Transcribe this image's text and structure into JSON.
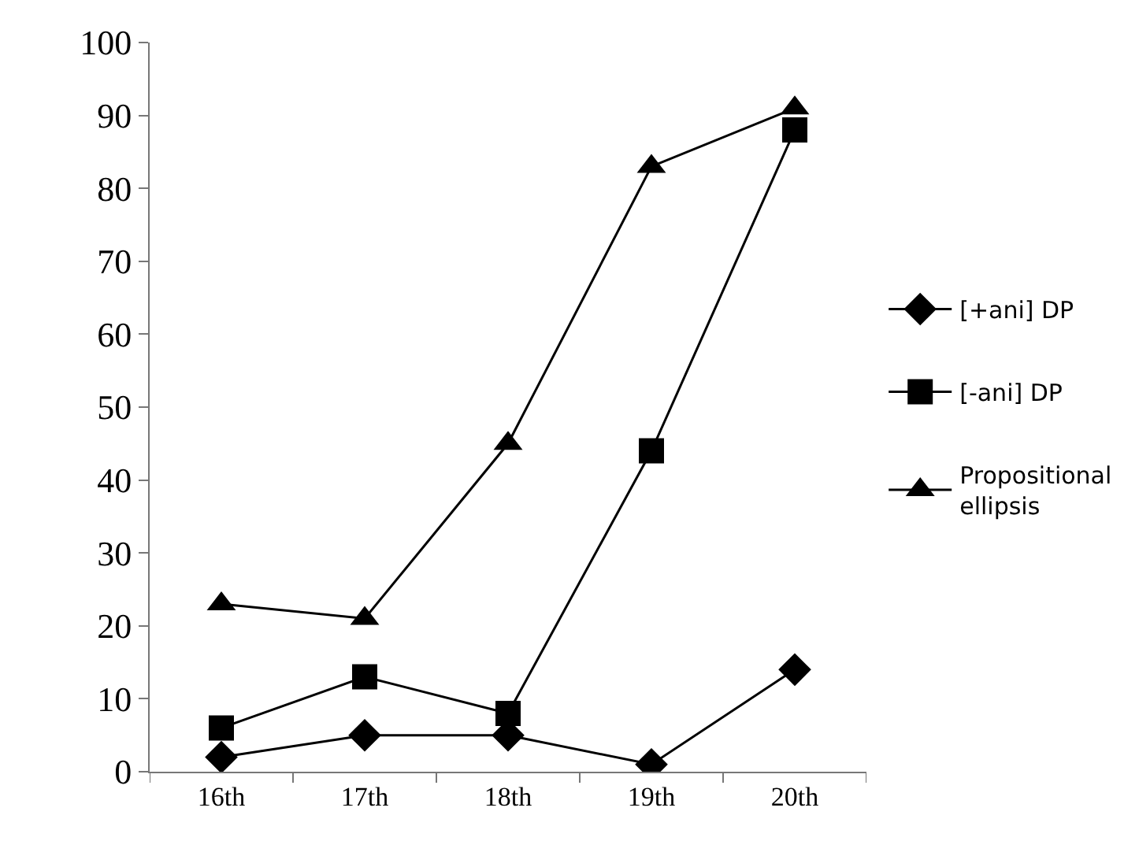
{
  "chart_data": {
    "type": "line",
    "categories": [
      "16th",
      "17th",
      "18th",
      "19th",
      "20th"
    ],
    "series": [
      {
        "name": "[+ani] DP",
        "color": "#000000",
        "marker": "diamond",
        "values": [
          2,
          5,
          5,
          1,
          14
        ]
      },
      {
        "name": "[-ani] DP",
        "color": "#000000",
        "marker": "square",
        "values": [
          6,
          13,
          8,
          44,
          88
        ]
      },
      {
        "name": "Propositional ellipsis",
        "color": "#000000",
        "marker": "triangle",
        "values": [
          23,
          21,
          45,
          83,
          91
        ]
      }
    ],
    "ylim": [
      0,
      100
    ],
    "yticks": [
      0,
      10,
      20,
      30,
      40,
      50,
      60,
      70,
      80,
      90,
      100
    ],
    "legend": "right",
    "line_style": "solid"
  }
}
